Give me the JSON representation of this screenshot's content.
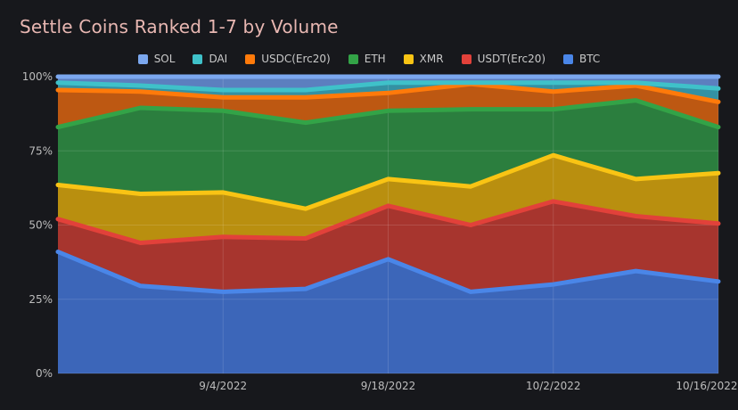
{
  "chart_data": {
    "type": "area",
    "title": "Settle Coins Ranked 1-7 by Volume",
    "stacked": true,
    "normalized": true,
    "xlabel": "",
    "ylabel": "",
    "ylim": [
      0,
      100
    ],
    "y_ticks": [
      "0%",
      "25%",
      "50%",
      "75%",
      "100%"
    ],
    "x_tick_labels": [
      "9/4/2022",
      "9/18/2022",
      "10/2/2022",
      "10/16/2022"
    ],
    "x_tick_positions": [
      2,
      4,
      6,
      8
    ],
    "x": [
      0,
      1,
      2,
      3,
      4,
      5,
      6,
      7,
      8
    ],
    "grid": true,
    "legend_position": "top",
    "series": [
      {
        "name": "BTC",
        "color": "#4a86e8",
        "fill": "#3c66b9",
        "cumulative": [
          41,
          29.5,
          27.5,
          28.5,
          38.5,
          27.5,
          30,
          34.5,
          31
        ]
      },
      {
        "name": "USDT(Erc20)",
        "color": "#e2413a",
        "fill": "#a7352e",
        "cumulative": [
          52,
          44,
          46,
          45.5,
          56.5,
          50,
          58,
          53,
          50.5
        ]
      },
      {
        "name": "XMR",
        "color": "#f9c414",
        "fill": "#b98f0f",
        "cumulative": [
          63.5,
          60.5,
          61,
          55.5,
          65.5,
          63,
          73.5,
          65.5,
          67.5
        ]
      },
      {
        "name": "ETH",
        "color": "#33a347",
        "fill": "#2b7e3e",
        "cumulative": [
          83,
          89.5,
          88.5,
          84.5,
          88.5,
          89,
          89,
          92,
          83
        ]
      },
      {
        "name": "USDC(Erc20)",
        "color": "#ff7a0a",
        "fill": "#bd5812",
        "cumulative": [
          95.5,
          95,
          93,
          93,
          94.5,
          97.5,
          95,
          97,
          91.5
        ]
      },
      {
        "name": "DAI",
        "color": "#3fc1c9",
        "fill": "#3491a3",
        "cumulative": [
          98,
          97,
          95.5,
          95.5,
          98,
          98,
          98,
          98,
          96
        ]
      },
      {
        "name": "SOL",
        "color": "#7ba7ee",
        "fill": "#5c7fbf",
        "cumulative": [
          100,
          100,
          100,
          100,
          100,
          100,
          100,
          100,
          100
        ]
      }
    ]
  }
}
